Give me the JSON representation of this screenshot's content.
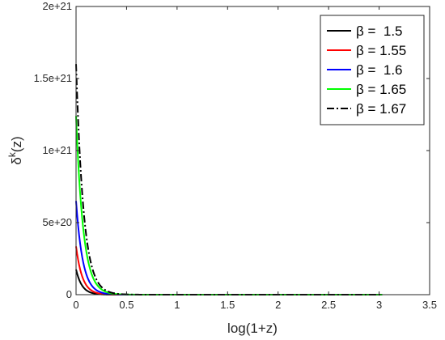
{
  "chart_data": {
    "type": "line",
    "title": "",
    "xlabel": "log(1+z)",
    "ylabel_base": "δ",
    "ylabel_sup": "k",
    "ylabel_tail": "(z)",
    "xlim": [
      0,
      3.5
    ],
    "ylim": [
      0,
      2e+21
    ],
    "x_ticks": [
      0,
      0.5,
      1,
      1.5,
      2,
      2.5,
      3,
      3.5
    ],
    "x_tick_labels": [
      "0",
      "0.5",
      "1",
      "1.5",
      "2",
      "2.5",
      "3",
      "3.5"
    ],
    "y_ticks": [
      0,
      5e+20,
      1e+21,
      1.5e+21,
      2e+21
    ],
    "y_tick_labels": [
      "0",
      "5e+20",
      "1e+21",
      "1.5e+21",
      "2e+21"
    ],
    "grid": false,
    "legend_position": "top-right",
    "x_range": [
      0,
      3.03
    ],
    "series": [
      {
        "name": "β =  1.5",
        "color": "#000000",
        "dash": "solid",
        "start": 1.75e+20,
        "decay": 17
      },
      {
        "name": "β = 1.55",
        "color": "#ff0000",
        "dash": "solid",
        "start": 3.35e+20,
        "decay": 16
      },
      {
        "name": "β =  1.6",
        "color": "#0000ff",
        "dash": "solid",
        "start": 6.5e+20,
        "decay": 15
      },
      {
        "name": "β = 1.65",
        "color": "#00ff00",
        "dash": "solid",
        "start": 1.24e+21,
        "decay": 14
      },
      {
        "name": "β = 1.67",
        "color": "#000000",
        "dash": "dashdot",
        "start": 1.6e+21,
        "decay": 13.5
      }
    ]
  }
}
